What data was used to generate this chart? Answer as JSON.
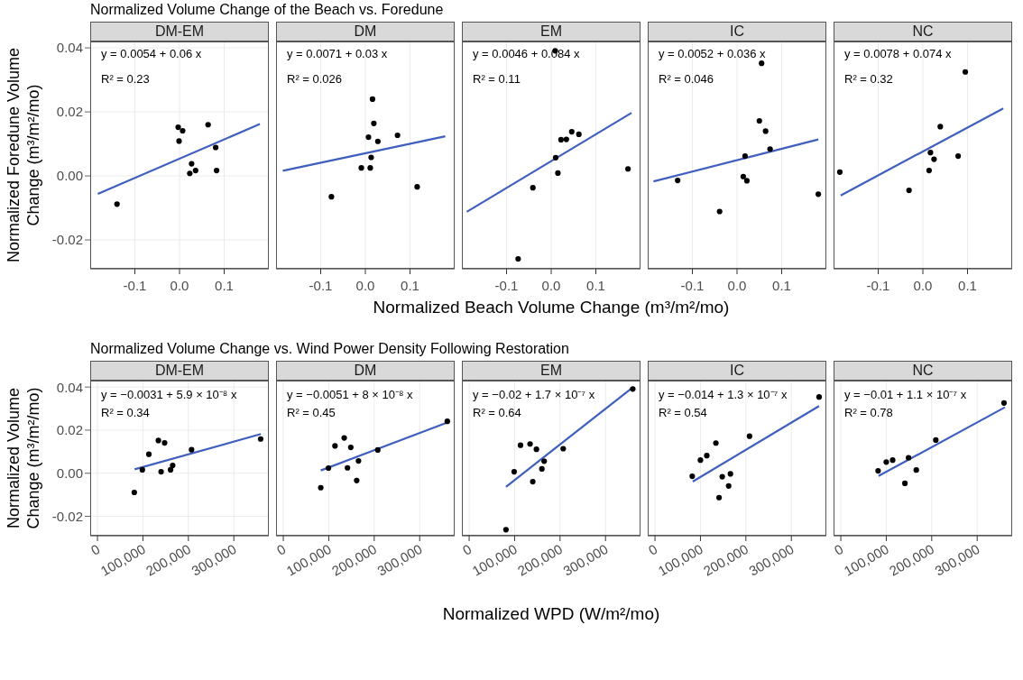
{
  "chart_data": [
    {
      "type": "scatter",
      "subtitle": "Normalized Volume Change of the Beach vs. Foredune",
      "title": "DM-EM",
      "ylabel": "Normalized Foredune Volume Change (m³/m²/mo)",
      "annotations": [
        "y = 0.0054 + 0.06 x",
        "R² = 0.23"
      ],
      "xlim": [
        -0.2,
        0.2
      ],
      "ylim": [
        -0.029,
        0.042
      ],
      "xticks": [
        -0.1,
        {
          "value": 0,
          "label": "0.0"
        },
        0.1
      ],
      "yticks": [
        -0.02,
        {
          "value": 0,
          "label": "0.00"
        },
        0.02,
        0.04
      ],
      "grid": true,
      "series": [
        {
          "marker": "circle",
          "color": "#000000",
          "x": [
            -0.14,
            -0.003,
            0.007,
            -0.001,
            0.064,
            0.081,
            0.027,
            0.036,
            0.023,
            0.083
          ],
          "values": [
            -0.0088,
            0.0152,
            0.0141,
            0.0109,
            0.016,
            0.0089,
            0.0038,
            0.0017,
            0.0008,
            0.0017
          ]
        },
        {
          "type": "line",
          "marker": "none",
          "color": "#3f5fbf",
          "x": [
            -0.183,
            0.18
          ],
          "values": [
            -0.0056,
            0.0162
          ]
        }
      ]
    },
    {
      "type": "scatter",
      "title": "DM",
      "annotations": [
        "y = 0.0071 + 0.03 x",
        "R² = 0.026"
      ],
      "xlim": [
        -0.2,
        0.2
      ],
      "ylim": [
        -0.029,
        0.042
      ],
      "xticks": [
        -0.1,
        {
          "value": 0,
          "label": "0.0"
        },
        0.1
      ],
      "yticks": [
        -0.02,
        0,
        0.02,
        0.04
      ],
      "grid": true,
      "tick_labels": "x",
      "series": [
        {
          "marker": "circle",
          "color": "#000000",
          "x": [
            0.016,
            0.019,
            0.007,
            0.028,
            0.072,
            0.013,
            -0.009,
            0.011,
            -0.076,
            0.116
          ],
          "values": [
            0.024,
            0.0164,
            0.0121,
            0.0108,
            0.0127,
            0.0058,
            0.0025,
            0.0025,
            -0.0065,
            -0.0034
          ]
        },
        {
          "type": "line",
          "marker": "none",
          "color": "#3f5fbf",
          "x": [
            -0.185,
            0.179
          ],
          "values": [
            0.0016,
            0.0124
          ]
        }
      ]
    },
    {
      "type": "scatter",
      "title": "EM",
      "xlabel": "Normalized Beach Volume Change  (m³/m²/mo)",
      "annotations": [
        "y = 0.0046 + 0.084 x",
        "R² = 0.11"
      ],
      "xlim": [
        -0.2,
        0.2
      ],
      "ylim": [
        -0.029,
        0.042
      ],
      "xticks": [
        -0.1,
        {
          "value": 0,
          "label": "0.0"
        },
        0.1
      ],
      "yticks": [
        -0.02,
        0,
        0.02,
        0.04
      ],
      "grid": true,
      "tick_labels": "x",
      "series": [
        {
          "marker": "circle",
          "color": "#000000",
          "x": [
            0.009,
            0.022,
            0.034,
            0.046,
            0.062,
            0.01,
            0.015,
            0.172,
            -0.041,
            -0.074
          ],
          "values": [
            0.0391,
            0.0113,
            0.0114,
            0.0138,
            0.013,
            0.0057,
            0.0009,
            0.0022,
            -0.0037,
            -0.0259
          ]
        },
        {
          "type": "line",
          "marker": "none",
          "color": "#3f5fbf",
          "x": [
            -0.189,
            0.18
          ],
          "values": [
            -0.0112,
            0.0197
          ]
        }
      ]
    },
    {
      "type": "scatter",
      "title": "IC",
      "annotations": [
        "y = 0.0052 + 0.036 x",
        "R² = 0.046"
      ],
      "xlim": [
        -0.2,
        0.2
      ],
      "ylim": [
        -0.029,
        0.042
      ],
      "xticks": [
        -0.1,
        {
          "value": 0,
          "label": "0.0"
        },
        0.1
      ],
      "yticks": [
        -0.02,
        0,
        0.02,
        0.04
      ],
      "grid": true,
      "tick_labels": "x",
      "series": [
        {
          "marker": "circle",
          "color": "#000000",
          "x": [
            0.055,
            0.05,
            0.064,
            0.074,
            0.018,
            0.014,
            0.022,
            -0.133,
            -0.039,
            0.182
          ],
          "values": [
            0.0352,
            0.0172,
            0.014,
            0.0084,
            0.0062,
            -0.0002,
            -0.0015,
            -0.0014,
            -0.0111,
            -0.0057
          ]
        },
        {
          "type": "line",
          "marker": "none",
          "color": "#3f5fbf",
          "x": [
            -0.187,
            0.182
          ],
          "values": [
            -0.0017,
            0.0114
          ]
        }
      ]
    },
    {
      "type": "scatter",
      "title": "NC",
      "annotations": [
        "y = 0.0078 + 0.074 x",
        "R² = 0.32"
      ],
      "xlim": [
        -0.2,
        0.2
      ],
      "ylim": [
        -0.029,
        0.042
      ],
      "xticks": [
        -0.1,
        {
          "value": 0,
          "label": "0.0"
        },
        0.1
      ],
      "yticks": [
        -0.02,
        0,
        0.02,
        0.04
      ],
      "grid": true,
      "tick_labels": "x",
      "series": [
        {
          "marker": "circle",
          "color": "#000000",
          "x": [
            0.095,
            0.039,
            0.017,
            0.025,
            0.014,
            0.079,
            -0.031,
            -0.186
          ],
          "values": [
            0.0325,
            0.0154,
            0.0073,
            0.0052,
            0.0017,
            0.0062,
            -0.0045,
            0.0012
          ]
        },
        {
          "type": "line",
          "marker": "none",
          "color": "#3f5fbf",
          "x": [
            -0.184,
            0.18
          ],
          "values": [
            -0.0061,
            0.0211
          ]
        }
      ]
    },
    {
      "type": "scatter",
      "subtitle": "Normalized Volume Change vs. Wind Power Density Following Restoration",
      "title": "DM-EM",
      "ylabel": "Normalized Volume Change (m³/m²/mo)",
      "annotations": [
        "y = −0.0031 + 5.9 × 10⁻⁸ x",
        "R² = 0.34"
      ],
      "xlim": [
        -16000,
        377000
      ],
      "ylim": [
        -0.029,
        0.043
      ],
      "xticks": [
        0,
        {
          "value": 100000,
          "label": "100,000"
        },
        {
          "value": 200000,
          "label": "200,000"
        },
        {
          "value": 300000,
          "label": "300,000"
        }
      ],
      "yticks": [
        -0.02,
        {
          "value": 0,
          "label": "0.00"
        },
        0.02,
        0.04
      ],
      "grid": true,
      "series": [
        {
          "marker": "circle",
          "color": "#000000",
          "x": [
            81000,
            98700,
            113000,
            134000,
            147700,
            140000,
            160800,
            165400,
            207000,
            359000
          ],
          "values": [
            -0.0089,
            0.0016,
            0.0088,
            0.0152,
            0.0141,
            0.0007,
            0.0016,
            0.0036,
            0.0109,
            0.0159
          ]
        },
        {
          "type": "line",
          "marker": "none",
          "color": "#3f5fbf",
          "x": [
            81700,
            359500
          ],
          "values": [
            0.0018,
            0.0182
          ]
        }
      ]
    },
    {
      "type": "scatter",
      "title": "DM",
      "annotations": [
        "y = −0.0051 + 8 × 10⁻⁸ x",
        "R² = 0.45"
      ],
      "xlim": [
        -16000,
        377000
      ],
      "ylim": [
        -0.029,
        0.043
      ],
      "xticks": [
        0,
        {
          "value": 100000,
          "label": "100,000"
        },
        {
          "value": 200000,
          "label": "200,000"
        },
        {
          "value": 300000,
          "label": "300,000"
        }
      ],
      "yticks": [
        -0.02,
        0,
        0.02,
        0.04
      ],
      "grid": true,
      "tick_labels": "x",
      "series": [
        {
          "marker": "circle",
          "color": "#000000",
          "x": [
            82400,
            99300,
            113700,
            134000,
            148400,
            141200,
            161400,
            165400,
            207800,
            360800
          ],
          "values": [
            -0.0067,
            0.0024,
            0.0127,
            0.0164,
            0.012,
            0.0025,
            -0.0034,
            0.0057,
            0.0108,
            0.0241
          ]
        },
        {
          "type": "line",
          "marker": "none",
          "color": "#3f5fbf",
          "x": [
            82400,
            360800
          ],
          "values": [
            0.0013,
            0.0235
          ]
        }
      ]
    },
    {
      "type": "scatter",
      "title": "EM",
      "xlabel": "Normalized WPD  (W/m²/mo)",
      "annotations": [
        "y = −0.02 + 1.7 × 10⁻⁷ x",
        "R² = 0.64"
      ],
      "xlim": [
        -16000,
        377000
      ],
      "ylim": [
        -0.029,
        0.043
      ],
      "xticks": [
        0,
        {
          "value": 100000,
          "label": "100,000"
        },
        {
          "value": 200000,
          "label": "200,000"
        },
        {
          "value": 300000,
          "label": "300,000"
        }
      ],
      "yticks": [
        -0.02,
        0,
        0.02,
        0.04
      ],
      "grid": true,
      "tick_labels": "x",
      "series": [
        {
          "marker": "circle",
          "color": "#000000",
          "x": [
            81000,
            99000,
            113000,
            134000,
            148000,
            140000,
            160000,
            165000,
            207000,
            360000
          ],
          "values": [
            -0.0262,
            0.0007,
            0.013,
            0.0136,
            0.0111,
            -0.0039,
            0.002,
            0.0056,
            0.0114,
            0.0391
          ]
        },
        {
          "type": "line",
          "marker": "none",
          "color": "#3f5fbf",
          "x": [
            81000,
            358600
          ],
          "values": [
            -0.0063,
            0.0396
          ]
        }
      ]
    },
    {
      "type": "scatter",
      "title": "IC",
      "annotations": [
        "y = −0.014 + 1.3 × 10⁻⁷ x",
        "R² = 0.54"
      ],
      "xlim": [
        -16000,
        377000
      ],
      "ylim": [
        -0.029,
        0.043
      ],
      "xticks": [
        0,
        {
          "value": 100000,
          "label": "100,000"
        },
        {
          "value": 200000,
          "label": "200,000"
        },
        {
          "value": 300000,
          "label": "300,000"
        }
      ],
      "yticks": [
        -0.02,
        0,
        0.02,
        0.04
      ],
      "grid": true,
      "tick_labels": "x",
      "series": [
        {
          "marker": "circle",
          "color": "#000000",
          "x": [
            82000,
            100000,
            114000,
            134000,
            148000,
            141000,
            162000,
            166000,
            208000,
            361000
          ],
          "values": [
            -0.0014,
            0.0061,
            0.0082,
            0.014,
            -0.0016,
            -0.0113,
            -0.0059,
            -0.0003,
            0.0172,
            0.0354
          ]
        },
        {
          "type": "line",
          "marker": "none",
          "color": "#3f5fbf",
          "x": [
            83000,
            361000
          ],
          "values": [
            -0.0039,
            0.0312
          ]
        }
      ]
    },
    {
      "type": "scatter",
      "title": "NC",
      "annotations": [
        "y = −0.01 + 1.1 × 10⁻⁷ x",
        "R² = 0.78"
      ],
      "xlim": [
        -16000,
        377000
      ],
      "ylim": [
        -0.029,
        0.043
      ],
      "xticks": [
        0,
        {
          "value": 100000,
          "label": "100,000"
        },
        {
          "value": 200000,
          "label": "200,000"
        },
        {
          "value": 300000,
          "label": "300,000"
        }
      ],
      "yticks": [
        -0.02,
        0,
        0.02,
        0.04
      ],
      "grid": true,
      "tick_labels": "x",
      "series": [
        {
          "marker": "circle",
          "color": "#000000",
          "x": [
            82000,
            100000,
            114000,
            149000,
            141000,
            166000,
            209000,
            359000
          ],
          "values": [
            0.0011,
            0.0052,
            0.0061,
            0.0072,
            -0.0047,
            0.0015,
            0.0154,
            0.0326
          ]
        },
        {
          "type": "line",
          "marker": "none",
          "color": "#3f5fbf",
          "x": [
            83000,
            361000
          ],
          "values": [
            -0.0013,
            0.0306
          ]
        }
      ]
    }
  ]
}
